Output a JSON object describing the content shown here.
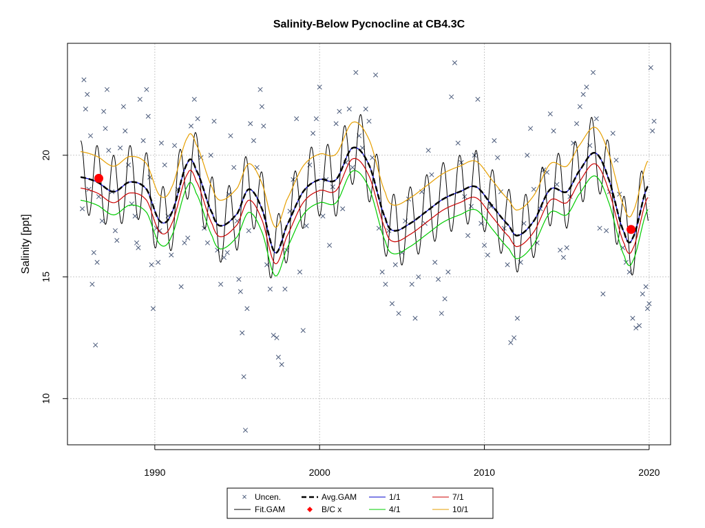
{
  "chart_data": {
    "type": "scatter",
    "title": "Salinity-Below Pycnocline at CB4.3C",
    "xlabel": "",
    "ylabel": "Salinity [ppt]",
    "xlim": [
      1984.7,
      2021.3
    ],
    "ylim": [
      8.1,
      24.6
    ],
    "x_ticks": [
      "1990",
      "2000",
      "2010",
      "2020"
    ],
    "y_ticks": [
      "10",
      "15",
      "20"
    ],
    "grid": true,
    "legend_position": "bottom-center",
    "legend": {
      "uncen": "Uncen.",
      "fit_gam": "Fit.GAM",
      "avg_gam": "Avg.GAM",
      "bc": "B/C x",
      "q1": "1/1",
      "q4": "4/1",
      "q7": "7/1",
      "q10": "10/1"
    },
    "colors": {
      "points": "#4a5a7a",
      "fit": "#000000",
      "avg": "#000000",
      "bc": "#ff0000",
      "q1": "#0000cc",
      "q4": "#00cc00",
      "q7": "#cc0000",
      "q10": "#e69f00"
    },
    "avg_gam": {
      "x": [
        1985.5,
        1986.5,
        1987.5,
        1988.5,
        1989.5,
        1990.3,
        1991.0,
        1992.0,
        1992.5,
        1993.5,
        1994.0,
        1995.0,
        1995.7,
        1996.5,
        1997.3,
        1998.0,
        1999.0,
        2000.0,
        2001.0,
        2002.0,
        2003.0,
        2004.0,
        2004.5,
        2005.5,
        2006.5,
        2007.5,
        2008.5,
        2009.5,
        2010.5,
        2011.5,
        2012.0,
        2013.0,
        2014.0,
        2015.0,
        2015.7,
        2016.7,
        2017.5,
        2018.5,
        2019.0,
        2019.9
      ],
      "y": [
        19.1,
        18.9,
        18.5,
        18.9,
        18.6,
        17.3,
        17.6,
        19.7,
        19.4,
        17.6,
        17.1,
        17.6,
        18.6,
        17.8,
        16.0,
        17.1,
        18.5,
        19.0,
        19.0,
        20.3,
        19.6,
        17.4,
        16.9,
        17.2,
        17.7,
        18.2,
        18.5,
        18.7,
        17.9,
        17.1,
        16.7,
        17.3,
        18.6,
        18.5,
        19.3,
        20.1,
        19.1,
        16.8,
        16.6,
        18.7
      ]
    },
    "fit_gam_amplitude": 1.5,
    "quantile_offsets": {
      "q1": 0.0,
      "q4": -0.95,
      "q7": -0.45,
      "q10": 1.05
    },
    "bc_points": [
      {
        "x": 1986.6,
        "y": 19.05
      },
      {
        "x": 2018.9,
        "y": 16.95
      }
    ],
    "points": [
      [
        1985.6,
        17.8
      ],
      [
        1985.7,
        23.1
      ],
      [
        1985.8,
        21.9
      ],
      [
        1985.9,
        22.5
      ],
      [
        1986.0,
        18.6
      ],
      [
        1986.1,
        20.8
      ],
      [
        1986.2,
        14.7
      ],
      [
        1986.3,
        16.0
      ],
      [
        1986.4,
        12.2
      ],
      [
        1986.5,
        15.6
      ],
      [
        1986.6,
        18.3
      ],
      [
        1986.8,
        17.3
      ],
      [
        1986.9,
        21.8
      ],
      [
        1987.0,
        21.1
      ],
      [
        1987.1,
        22.7
      ],
      [
        1987.2,
        20.2
      ],
      [
        1987.4,
        18.5
      ],
      [
        1987.6,
        16.9
      ],
      [
        1987.7,
        16.5
      ],
      [
        1987.9,
        20.3
      ],
      [
        1988.1,
        22.0
      ],
      [
        1988.2,
        21.0
      ],
      [
        1988.4,
        19.6
      ],
      [
        1988.6,
        18.0
      ],
      [
        1988.8,
        17.5
      ],
      [
        1988.9,
        16.4
      ],
      [
        1989.0,
        16.2
      ],
      [
        1989.1,
        22.3
      ],
      [
        1989.3,
        20.6
      ],
      [
        1989.5,
        22.7
      ],
      [
        1989.6,
        21.6
      ],
      [
        1989.7,
        19.1
      ],
      [
        1989.8,
        15.5
      ],
      [
        1989.9,
        13.7
      ],
      [
        1990.1,
        17.0
      ],
      [
        1990.2,
        15.6
      ],
      [
        1990.3,
        16.9
      ],
      [
        1990.4,
        20.5
      ],
      [
        1990.6,
        19.6
      ],
      [
        1990.8,
        17.5
      ],
      [
        1991.0,
        15.9
      ],
      [
        1991.2,
        20.4
      ],
      [
        1991.4,
        18.6
      ],
      [
        1991.6,
        14.6
      ],
      [
        1991.8,
        16.4
      ],
      [
        1992.0,
        16.6
      ],
      [
        1992.2,
        21.2
      ],
      [
        1992.4,
        22.3
      ],
      [
        1992.6,
        21.5
      ],
      [
        1992.8,
        19.9
      ],
      [
        1993.0,
        17.0
      ],
      [
        1993.2,
        16.4
      ],
      [
        1993.4,
        20.0
      ],
      [
        1993.6,
        21.4
      ],
      [
        1993.8,
        16.1
      ],
      [
        1994.0,
        14.7
      ],
      [
        1994.2,
        15.8
      ],
      [
        1994.4,
        16.0
      ],
      [
        1994.5,
        18.4
      ],
      [
        1994.6,
        20.8
      ],
      [
        1994.8,
        19.5
      ],
      [
        1995.0,
        17.3
      ],
      [
        1995.1,
        14.9
      ],
      [
        1995.2,
        14.4
      ],
      [
        1995.3,
        12.7
      ],
      [
        1995.4,
        10.9
      ],
      [
        1995.5,
        8.7
      ],
      [
        1995.6,
        13.7
      ],
      [
        1995.7,
        16.9
      ],
      [
        1995.8,
        21.3
      ],
      [
        1996.0,
        20.6
      ],
      [
        1996.2,
        19.5
      ],
      [
        1996.4,
        22.7
      ],
      [
        1996.5,
        22.0
      ],
      [
        1996.6,
        21.2
      ],
      [
        1996.8,
        15.5
      ],
      [
        1997.0,
        14.5
      ],
      [
        1997.2,
        12.6
      ],
      [
        1997.4,
        12.5
      ],
      [
        1997.5,
        11.7
      ],
      [
        1997.7,
        11.4
      ],
      [
        1997.9,
        14.5
      ],
      [
        1998.0,
        16.1
      ],
      [
        1998.2,
        17.7
      ],
      [
        1998.4,
        19.0
      ],
      [
        1998.6,
        21.5
      ],
      [
        1998.8,
        15.2
      ],
      [
        1999.0,
        12.8
      ],
      [
        1999.2,
        17.1
      ],
      [
        1999.4,
        19.6
      ],
      [
        1999.6,
        20.9
      ],
      [
        1999.8,
        21.5
      ],
      [
        2000.0,
        22.8
      ],
      [
        2000.2,
        17.5
      ],
      [
        2000.4,
        19.0
      ],
      [
        2000.6,
        16.3
      ],
      [
        2000.8,
        18.7
      ],
      [
        2001.0,
        21.3
      ],
      [
        2001.2,
        21.8
      ],
      [
        2001.4,
        17.8
      ],
      [
        2001.6,
        19.7
      ],
      [
        2001.8,
        21.9
      ],
      [
        2002.0,
        19.5
      ],
      [
        2002.2,
        23.4
      ],
      [
        2002.4,
        20.8
      ],
      [
        2002.6,
        20.3
      ],
      [
        2002.8,
        21.9
      ],
      [
        2003.0,
        21.4
      ],
      [
        2003.2,
        19.9
      ],
      [
        2003.4,
        23.3
      ],
      [
        2003.6,
        17.0
      ],
      [
        2003.8,
        15.2
      ],
      [
        2004.0,
        14.7
      ],
      [
        2004.2,
        16.9
      ],
      [
        2004.4,
        13.9
      ],
      [
        2004.6,
        15.5
      ],
      [
        2004.8,
        13.5
      ],
      [
        2005.0,
        16.0
      ],
      [
        2005.2,
        17.3
      ],
      [
        2005.4,
        18.2
      ],
      [
        2005.6,
        14.7
      ],
      [
        2005.8,
        13.3
      ],
      [
        2006.0,
        15.0
      ],
      [
        2006.2,
        18.5
      ],
      [
        2006.4,
        17.2
      ],
      [
        2006.6,
        20.2
      ],
      [
        2006.8,
        19.2
      ],
      [
        2007.0,
        15.6
      ],
      [
        2007.2,
        14.9
      ],
      [
        2007.4,
        13.5
      ],
      [
        2007.6,
        14.1
      ],
      [
        2007.8,
        15.2
      ],
      [
        2008.0,
        22.4
      ],
      [
        2008.2,
        23.8
      ],
      [
        2008.4,
        20.5
      ],
      [
        2008.6,
        19.7
      ],
      [
        2008.8,
        18.3
      ],
      [
        2009.0,
        16.7
      ],
      [
        2009.2,
        17.9
      ],
      [
        2009.4,
        20.0
      ],
      [
        2009.6,
        22.3
      ],
      [
        2009.8,
        17.2
      ],
      [
        2010.0,
        16.3
      ],
      [
        2010.2,
        15.9
      ],
      [
        2010.4,
        17.9
      ],
      [
        2010.6,
        20.6
      ],
      [
        2010.8,
        19.9
      ],
      [
        2011.0,
        18.5
      ],
      [
        2011.2,
        17.0
      ],
      [
        2011.4,
        15.5
      ],
      [
        2011.6,
        12.3
      ],
      [
        2011.8,
        12.5
      ],
      [
        2012.0,
        13.3
      ],
      [
        2012.2,
        15.6
      ],
      [
        2012.4,
        17.2
      ],
      [
        2012.6,
        20.0
      ],
      [
        2012.8,
        21.1
      ],
      [
        2013.0,
        18.6
      ],
      [
        2013.2,
        16.4
      ],
      [
        2013.4,
        17.8
      ],
      [
        2013.6,
        19.4
      ],
      [
        2013.8,
        19.3
      ],
      [
        2014.0,
        21.7
      ],
      [
        2014.2,
        21.0
      ],
      [
        2014.4,
        18.8
      ],
      [
        2014.6,
        16.1
      ],
      [
        2014.8,
        15.8
      ],
      [
        2015.0,
        16.2
      ],
      [
        2015.2,
        18.3
      ],
      [
        2015.4,
        20.5
      ],
      [
        2015.6,
        21.3
      ],
      [
        2015.8,
        22.0
      ],
      [
        2016.0,
        22.5
      ],
      [
        2016.2,
        22.8
      ],
      [
        2016.4,
        20.4
      ],
      [
        2016.6,
        23.4
      ],
      [
        2016.8,
        21.5
      ],
      [
        2017.0,
        17.0
      ],
      [
        2017.2,
        14.3
      ],
      [
        2017.4,
        16.9
      ],
      [
        2017.6,
        18.5
      ],
      [
        2017.8,
        20.9
      ],
      [
        2018.0,
        19.8
      ],
      [
        2018.2,
        18.4
      ],
      [
        2018.4,
        16.2
      ],
      [
        2018.6,
        15.6
      ],
      [
        2018.8,
        15.2
      ],
      [
        2019.0,
        13.3
      ],
      [
        2019.2,
        12.9
      ],
      [
        2019.4,
        13.0
      ],
      [
        2019.6,
        14.3
      ],
      [
        2019.8,
        14.6
      ],
      [
        2019.9,
        13.7
      ],
      [
        2020.0,
        13.9
      ],
      [
        2020.1,
        23.6
      ],
      [
        2020.2,
        21.0
      ],
      [
        2020.3,
        21.4
      ]
    ]
  }
}
